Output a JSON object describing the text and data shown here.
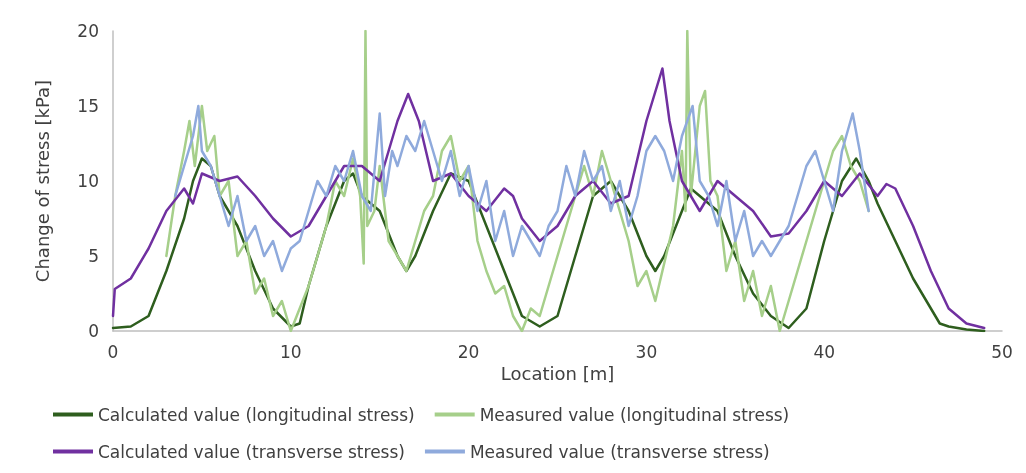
{
  "chart_data": {
    "type": "line",
    "xlabel": "Location [m]",
    "ylabel": "Change of stress [kPa]",
    "xlim": [
      0,
      50
    ],
    "xticks": [
      0,
      10,
      20,
      30,
      40,
      50
    ],
    "ylim": [
      0,
      20
    ],
    "yticks": [
      0,
      5,
      10,
      15,
      20
    ],
    "grid": false,
    "legend": "bottom",
    "marker": "none",
    "line_style": "solid",
    "series": [
      {
        "name": "Calculated value (longitudinal stress)",
        "color": "#2e5e1e",
        "x": [
          0,
          1,
          2,
          3,
          4,
          4.5,
          5,
          5.5,
          6,
          7,
          8,
          9,
          10,
          10.5,
          11,
          12,
          13,
          13.5,
          14,
          15,
          16,
          16.5,
          17,
          18,
          19,
          20,
          21,
          22,
          23,
          24,
          25,
          26,
          27,
          28,
          29,
          30,
          30.5,
          31,
          32,
          32.5,
          33,
          34,
          35,
          36,
          37,
          38,
          39,
          40,
          41,
          41.8,
          42.5,
          43,
          44,
          45,
          46,
          46.5,
          47,
          48,
          49
        ],
        "values": [
          0.2,
          0.3,
          1,
          4,
          7.5,
          10,
          11.5,
          11,
          9,
          7,
          4,
          1.5,
          0.3,
          0.5,
          3,
          7,
          10,
          10.5,
          9,
          8,
          5,
          4,
          5,
          8,
          10.5,
          10,
          7,
          4,
          1,
          0.3,
          1,
          5,
          9,
          10,
          8,
          5,
          4,
          5,
          8,
          9.5,
          9,
          8,
          5,
          2.5,
          1,
          0.2,
          1.5,
          6,
          10,
          11.5,
          10,
          8.5,
          6,
          3.5,
          1.5,
          0.5,
          0.3,
          0.1,
          0
        ]
      },
      {
        "name": "Measured value (longitudinal stress)",
        "color": "#a6cf8a",
        "x": [
          3,
          3.5,
          4,
          4.3,
          4.6,
          5,
          5.3,
          5.7,
          6,
          6.5,
          7,
          7.5,
          8,
          8.5,
          9,
          9.5,
          10,
          10.5,
          11,
          11.5,
          12,
          12.5,
          13,
          13.5,
          13.9,
          14.1,
          14.2,
          14.3,
          14.7,
          15,
          15.5,
          16,
          16.5,
          17,
          17.5,
          18,
          18.5,
          19,
          19.5,
          20,
          20.5,
          21,
          21.5,
          22,
          22.5,
          23,
          23.5,
          24,
          24.5,
          25,
          25.5,
          26,
          26.5,
          27,
          27.5,
          28,
          28.5,
          29,
          29.5,
          30,
          30.5,
          31,
          31.5,
          32,
          32.2,
          32.3,
          32.5,
          33,
          33.3,
          33.6,
          34,
          34.5,
          35,
          35.5,
          36,
          36.5,
          37,
          37.5,
          38,
          38.5,
          39,
          39.5,
          40,
          40.5,
          41,
          41.5,
          42,
          42.5
        ],
        "values": [
          5,
          9,
          12,
          14,
          11,
          15,
          12,
          13,
          9,
          10,
          5,
          6,
          2.5,
          3.5,
          1,
          2,
          0,
          1.5,
          3,
          5,
          7,
          10,
          9,
          11.5,
          9,
          4.5,
          20,
          7,
          8,
          11,
          6,
          5,
          4,
          6,
          8,
          9,
          12,
          13,
          10,
          11,
          6,
          4,
          2.5,
          3,
          1,
          0,
          1.5,
          1,
          3,
          5,
          7,
          9,
          11,
          9,
          12,
          10,
          8,
          6,
          3,
          4,
          2,
          4.5,
          7,
          12,
          8,
          20,
          9,
          15,
          16,
          10,
          9,
          4,
          6,
          2,
          4,
          1,
          3,
          0,
          2,
          4,
          6,
          8,
          10,
          12,
          13,
          11,
          10,
          8
        ]
      },
      {
        "name": "Calculated value (transverse stress)",
        "color": "#7030a0",
        "x": [
          0,
          0.1,
          1,
          2,
          3,
          4,
          4.5,
          5,
          6,
          7,
          8,
          9,
          10,
          11,
          12,
          13,
          14,
          15,
          16,
          16.6,
          17.2,
          18,
          19,
          20,
          21,
          22,
          22.5,
          23,
          24,
          25,
          26,
          27,
          28,
          29,
          30,
          30.9,
          31.3,
          32,
          33,
          34,
          35,
          36,
          37,
          38,
          39,
          40,
          41,
          42,
          43,
          43.5,
          44,
          45,
          46,
          47,
          48,
          49
        ],
        "values": [
          1,
          2.8,
          3.5,
          5.5,
          8,
          9.5,
          8.5,
          10.5,
          10,
          10.3,
          9,
          7.5,
          6.3,
          7,
          9,
          11,
          11,
          10,
          14,
          15.8,
          14,
          10,
          10.5,
          9,
          8,
          9.5,
          9,
          7.5,
          6,
          7,
          9,
          10,
          8.5,
          9,
          14,
          17.5,
          14,
          10,
          8,
          10,
          9,
          8,
          6.3,
          6.5,
          8,
          10,
          9,
          10.5,
          9,
          9.8,
          9.5,
          7,
          4,
          1.5,
          0.5,
          0.2
        ]
      },
      {
        "name": "Measured value (transverse stress)",
        "color": "#8faadc",
        "x": [
          3.5,
          4,
          4.5,
          4.8,
          5,
          5.5,
          6,
          6.5,
          7,
          7.5,
          8,
          8.5,
          9,
          9.5,
          10,
          10.5,
          11,
          11.5,
          12,
          12.5,
          13,
          13.5,
          14,
          14.5,
          15,
          15.3,
          15.7,
          16,
          16.5,
          17,
          17.5,
          18,
          18.5,
          19,
          19.5,
          20,
          20.5,
          21,
          21.5,
          22,
          22.5,
          23,
          23.5,
          24,
          24.5,
          25,
          25.5,
          26,
          26.5,
          27,
          27.5,
          28,
          28.5,
          29,
          29.5,
          30,
          30.5,
          31,
          31.5,
          32,
          32.6,
          33,
          33.5,
          34,
          34.5,
          35,
          35.5,
          36,
          36.5,
          37,
          37.5,
          38,
          38.5,
          39,
          39.5,
          40,
          40.5,
          41,
          41.6,
          42,
          42.5
        ],
        "values": [
          9,
          11,
          13,
          15,
          12,
          11,
          9,
          7,
          9,
          6,
          7,
          5,
          6,
          4,
          5.5,
          6,
          8,
          10,
          9,
          11,
          10,
          12,
          9,
          8,
          14.5,
          9,
          12,
          11,
          13,
          12,
          14,
          12,
          10,
          12,
          9,
          11,
          8,
          10,
          6,
          8,
          5,
          7,
          6,
          5,
          7,
          8,
          11,
          9,
          12,
          10,
          11,
          8,
          10,
          7,
          9,
          12,
          13,
          12,
          10,
          13,
          15,
          10,
          9,
          7,
          10,
          6,
          8,
          5,
          6,
          5,
          6,
          7,
          9,
          11,
          12,
          10,
          8,
          12,
          14.5,
          12,
          8
        ]
      }
    ]
  }
}
